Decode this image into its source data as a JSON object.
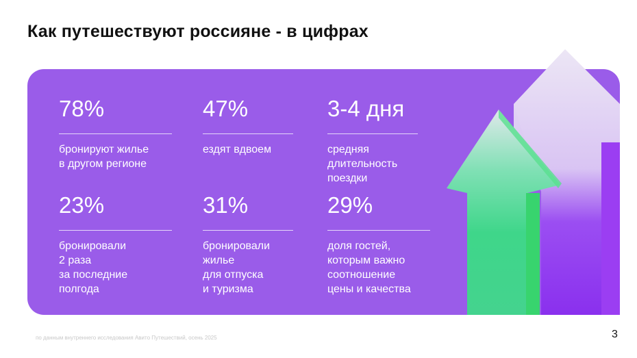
{
  "title": "Как путешествуют россияне - в цифрах",
  "stats": [
    {
      "value": "78%",
      "label": "бронируют жилье\nв другом регионе"
    },
    {
      "value": "47%",
      "label": "ездят вдвоем"
    },
    {
      "value": "3-4 дня",
      "label": "средняя\nдлительность\nпоездки"
    },
    {
      "value": "23%",
      "label": "бронировали\n2 раза\nза последние\nполгода"
    },
    {
      "value": "31%",
      "label": "бронировали\nжилье\nдля отпуска\nи туризма"
    },
    {
      "value": "29%",
      "label": "доля гостей,\nкоторым важно\nсоотношение\nцены и качества"
    }
  ],
  "footer": "по данным внутреннего исследования Авито Путешествий, осень 2025",
  "page_number": "3",
  "colors": {
    "card": "#9a5ce9",
    "green_arrow": "#3fd68a",
    "purple_arrow": "#8a3ef0"
  }
}
